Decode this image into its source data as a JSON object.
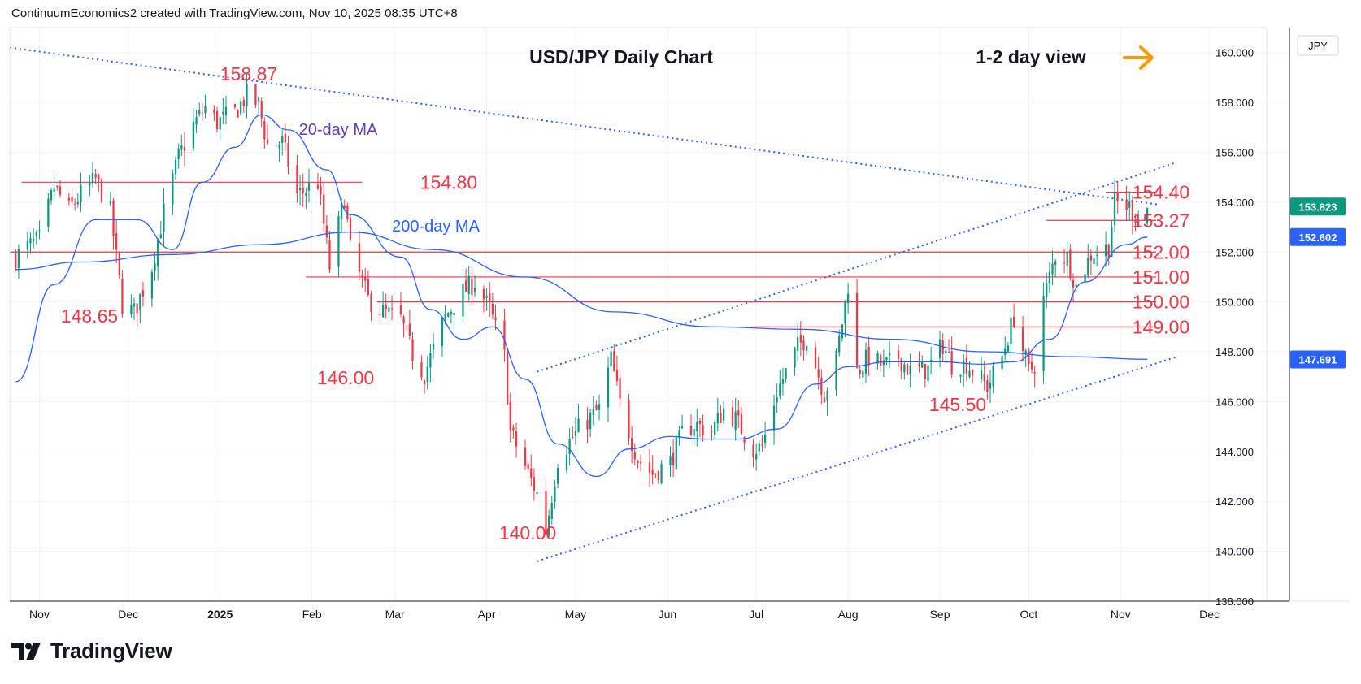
{
  "header": {
    "credit": "ContinuumEconomics2 created with TradingView.com, Nov 10, 2025 08:35 UTC+8"
  },
  "brand": {
    "name": "TradingView"
  },
  "chart_data": {
    "type": "candlestick",
    "title": "USD/JPY Daily Chart",
    "subtitle": "1-2 day view",
    "currency": "JPY",
    "ylim": [
      138,
      161
    ],
    "yticks": [
      "160.000",
      "158.000",
      "156.000",
      "154.000",
      "152.000",
      "150.000",
      "148.000",
      "146.000",
      "144.000",
      "142.000",
      "140.000",
      "138.000"
    ],
    "xticks": [
      "Nov",
      "Dec",
      "2025",
      "Feb",
      "Mar",
      "Apr",
      "May",
      "Jun",
      "Jul",
      "Aug",
      "Sep",
      "Oct",
      "Nov",
      "Dec"
    ],
    "price_tags": [
      {
        "value": "153.823",
        "color": "#089981"
      },
      {
        "value": "152.602",
        "color": "#2962ff"
      },
      {
        "value": "147.691",
        "color": "#2962ff"
      }
    ],
    "levels": [
      "154.80",
      "154.40",
      "153.27",
      "152.00",
      "151.00",
      "150.00",
      "149.00"
    ],
    "annotations": [
      "158.87",
      "148.65",
      "146.00",
      "140.00",
      "145.50"
    ],
    "ma_labels": [
      "20-day MA",
      "200-day MA"
    ],
    "colors": {
      "up": "#089981",
      "down": "#f23645",
      "level": "#f23645",
      "ma20": "#2962ff",
      "ma200": "#2962ff",
      "label_red": "#f23645",
      "label_purple": "#673ab7",
      "arrow": "#ff9800"
    },
    "anchors": [
      [
        "2024-10-24",
        151.8
      ],
      [
        "2024-10-28",
        152.2
      ],
      [
        "2024-11-01",
        152.5
      ],
      [
        "2024-11-06",
        154.6
      ],
      [
        "2024-11-11",
        153.7
      ],
      [
        "2024-11-15",
        154.3
      ],
      [
        "2024-11-20",
        154.9
      ],
      [
        "2024-11-25",
        153.6
      ],
      [
        "2024-11-29",
        149.9
      ],
      [
        "2024-12-03",
        149.6
      ],
      [
        "2024-12-09",
        151.4
      ],
      [
        "2024-12-13",
        153.6
      ],
      [
        "2024-12-18",
        155.8
      ],
      [
        "2024-12-23",
        157.1
      ],
      [
        "2024-12-27",
        157.8
      ],
      [
        "2024-12-31",
        157.2
      ],
      [
        "2025-01-06",
        157.6
      ],
      [
        "2025-01-10",
        158.3
      ],
      [
        "2025-01-14",
        157.9
      ],
      [
        "2025-01-17",
        156.3
      ],
      [
        "2025-01-22",
        156.4
      ],
      [
        "2025-01-27",
        154.3
      ],
      [
        "2025-02-03",
        154.8
      ],
      [
        "2025-02-07",
        151.4
      ],
      [
        "2025-02-12",
        154.2
      ],
      [
        "2025-02-14",
        152.1
      ],
      [
        "2025-02-20",
        150.1
      ],
      [
        "2025-02-25",
        149.6
      ],
      [
        "2025-03-03",
        149.3
      ],
      [
        "2025-03-07",
        147.9
      ],
      [
        "2025-03-11",
        147.1
      ],
      [
        "2025-03-18",
        149.4
      ],
      [
        "2025-03-24",
        150.4
      ],
      [
        "2025-03-28",
        150.8
      ],
      [
        "2025-04-02",
        149.7
      ],
      [
        "2025-04-07",
        147.8
      ],
      [
        "2025-04-09",
        144.8
      ],
      [
        "2025-04-14",
        143.4
      ],
      [
        "2025-04-18",
        142.3
      ],
      [
        "2025-04-21",
        140.8
      ],
      [
        "2025-04-25",
        143.7
      ],
      [
        "2025-05-02",
        144.9
      ],
      [
        "2025-05-09",
        145.7
      ],
      [
        "2025-05-13",
        147.7
      ],
      [
        "2025-05-16",
        145.9
      ],
      [
        "2025-05-22",
        143.7
      ],
      [
        "2025-05-27",
        143.1
      ],
      [
        "2025-06-02",
        143.6
      ],
      [
        "2025-06-06",
        144.7
      ],
      [
        "2025-06-10",
        145.1
      ],
      [
        "2025-06-16",
        144.8
      ],
      [
        "2025-06-20",
        145.7
      ],
      [
        "2025-06-24",
        145.3
      ],
      [
        "2025-06-30",
        144.1
      ],
      [
        "2025-07-03",
        144.2
      ],
      [
        "2025-07-08",
        146.4
      ],
      [
        "2025-07-15",
        148.2
      ],
      [
        "2025-07-18",
        148.6
      ],
      [
        "2025-07-24",
        146.3
      ],
      [
        "2025-07-28",
        147.7
      ],
      [
        "2025-08-01",
        150.7
      ],
      [
        "2025-08-04",
        147.2
      ],
      [
        "2025-08-08",
        147.8
      ],
      [
        "2025-08-13",
        147.4
      ],
      [
        "2025-08-18",
        147.8
      ],
      [
        "2025-08-22",
        147.2
      ],
      [
        "2025-08-28",
        147.3
      ],
      [
        "2025-09-02",
        148.3
      ],
      [
        "2025-09-05",
        147.5
      ],
      [
        "2025-09-10",
        147.5
      ],
      [
        "2025-09-17",
        146.6
      ],
      [
        "2025-09-22",
        147.8
      ],
      [
        "2025-09-26",
        149.4
      ],
      [
        "2025-10-01",
        147.2
      ],
      [
        "2025-10-03",
        147.5
      ],
      [
        "2025-10-06",
        150.1
      ],
      [
        "2025-10-10",
        151.9
      ],
      [
        "2025-10-14",
        151.8
      ],
      [
        "2025-10-17",
        150.6
      ],
      [
        "2025-10-22",
        151.9
      ],
      [
        "2025-10-28",
        152.2
      ],
      [
        "2025-10-30",
        154.0
      ],
      [
        "2025-11-04",
        153.8
      ],
      [
        "2025-11-07",
        153.3
      ],
      [
        "2025-11-10",
        153.8
      ]
    ],
    "ma20": [
      [
        "2024-10-24",
        146.8
      ],
      [
        "2024-11-06",
        150.7
      ],
      [
        "2024-11-20",
        153.3
      ],
      [
        "2024-12-04",
        153.3
      ],
      [
        "2024-12-16",
        152.1
      ],
      [
        "2024-12-26",
        154.8
      ],
      [
        "2025-01-06",
        156.2
      ],
      [
        "2025-01-15",
        157.5
      ],
      [
        "2025-01-24",
        156.9
      ],
      [
        "2025-02-06",
        155.3
      ],
      [
        "2025-02-14",
        153.5
      ],
      [
        "2025-03-03",
        151.8
      ],
      [
        "2025-03-13",
        149.7
      ],
      [
        "2025-03-24",
        148.5
      ],
      [
        "2025-04-03",
        149.0
      ],
      [
        "2025-04-14",
        146.9
      ],
      [
        "2025-04-25",
        144.3
      ],
      [
        "2025-05-08",
        143.0
      ],
      [
        "2025-05-19",
        144.1
      ],
      [
        "2025-06-02",
        144.6
      ],
      [
        "2025-06-13",
        144.5
      ],
      [
        "2025-06-25",
        144.5
      ],
      [
        "2025-07-08",
        144.9
      ],
      [
        "2025-07-21",
        146.7
      ],
      [
        "2025-08-01",
        147.4
      ],
      [
        "2025-08-15",
        147.6
      ],
      [
        "2025-09-01",
        147.6
      ],
      [
        "2025-09-15",
        147.5
      ],
      [
        "2025-09-26",
        147.6
      ],
      [
        "2025-10-08",
        148.5
      ],
      [
        "2025-10-20",
        150.8
      ],
      [
        "2025-11-03",
        152.3
      ],
      [
        "2025-11-10",
        152.6
      ]
    ],
    "ma200": [
      [
        "2024-10-24",
        151.3
      ],
      [
        "2024-11-15",
        151.6
      ],
      [
        "2024-12-16",
        151.9
      ],
      [
        "2025-01-15",
        152.3
      ],
      [
        "2025-02-14",
        152.8
      ],
      [
        "2025-03-14",
        152.1
      ],
      [
        "2025-04-14",
        151.0
      ],
      [
        "2025-05-14",
        149.6
      ],
      [
        "2025-06-16",
        149.0
      ],
      [
        "2025-07-16",
        148.9
      ],
      [
        "2025-08-16",
        148.5
      ],
      [
        "2025-09-16",
        148.0
      ],
      [
        "2025-10-16",
        147.8
      ],
      [
        "2025-11-10",
        147.7
      ]
    ]
  }
}
